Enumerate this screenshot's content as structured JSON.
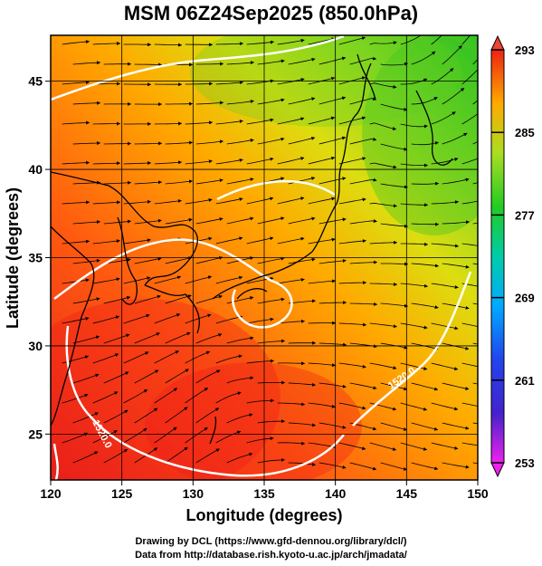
{
  "title": "MSM 06Z24Sep2025 (850.0hPa)",
  "x_axis": {
    "label": "Longitude (degrees)",
    "min": 120,
    "max": 150,
    "ticks": [
      120,
      125,
      130,
      135,
      140,
      145,
      150
    ],
    "tick_labels": [
      "120",
      "125",
      "130",
      "135",
      "140",
      "145",
      "150"
    ]
  },
  "y_axis": {
    "label": "Latitude  (degrees)",
    "min": 22.4,
    "max": 47.6,
    "ticks": [
      25,
      30,
      35,
      40,
      45
    ],
    "tick_labels": [
      "25",
      "30",
      "35",
      "40",
      "45"
    ]
  },
  "colorbar": {
    "min": 253,
    "max": 293,
    "ticks": [
      293,
      285,
      277,
      269,
      261,
      253
    ],
    "tick_labels": [
      "293",
      "285",
      "277",
      "269",
      "261",
      "253"
    ],
    "colors": [
      "#ee22ee",
      "#2222cc",
      "#0099ff",
      "#00cc99",
      "#22cc22",
      "#99dd22",
      "#ffcc00",
      "#ff6600",
      "#dd1100"
    ]
  },
  "contour_labels": [
    "1520.0",
    "1520.0"
  ],
  "credits": {
    "line1": "Drawing by DCL (https://www.gfd-dennou.org/library/dcl/)",
    "line2": "Data from http://database.rish.kyoto-u.ac.jp/arch/jmadata/"
  },
  "chart_data": {
    "type": "heatmap",
    "title": "MSM 06Z24Sep2025 (850.0hPa)",
    "xlabel": "Longitude (degrees)",
    "ylabel": "Latitude  (degrees)",
    "xlim": [
      120,
      150
    ],
    "ylim": [
      22.4,
      47.6
    ],
    "colorbar_range": [
      253,
      293
    ],
    "overlays": [
      "streamlines",
      "geopotential contours",
      "coastlines",
      "grid"
    ]
  }
}
